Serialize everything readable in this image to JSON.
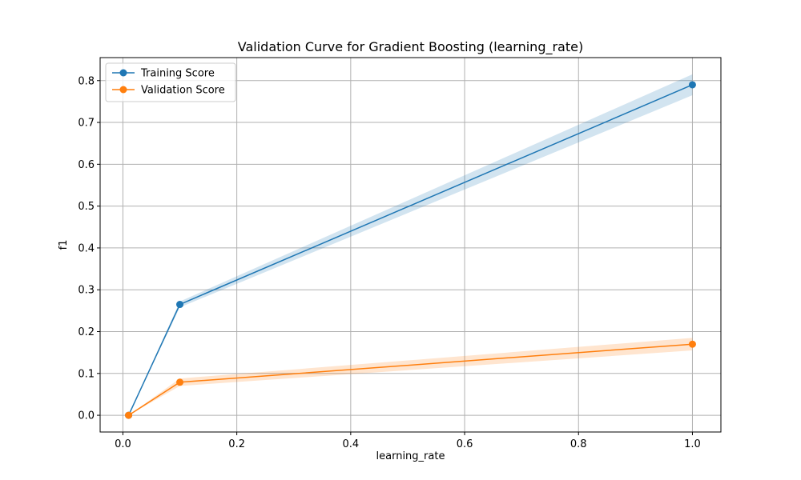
{
  "chart_data": {
    "type": "line",
    "title": "Validation Curve for Gradient Boosting (learning_rate)",
    "xlabel": "learning_rate",
    "ylabel": "f1",
    "xlim": [
      -0.04,
      1.05
    ],
    "ylim": [
      -0.04,
      0.855
    ],
    "xticks": [
      0.0,
      0.2,
      0.4,
      0.6,
      0.8,
      1.0
    ],
    "xtick_labels": [
      "0.0",
      "0.2",
      "0.4",
      "0.6",
      "0.8",
      "1.0"
    ],
    "yticks": [
      0.0,
      0.1,
      0.2,
      0.3,
      0.4,
      0.5,
      0.6,
      0.7,
      0.8
    ],
    "ytick_labels": [
      "0.0",
      "0.1",
      "0.2",
      "0.3",
      "0.4",
      "0.5",
      "0.6",
      "0.7",
      "0.8"
    ],
    "grid": true,
    "legend_position": "top-left",
    "x": [
      0.01,
      0.1,
      1.0
    ],
    "series": [
      {
        "name": "Training Score",
        "color": "#1f77b4",
        "band_color": "#1f77b4",
        "values": [
          0.0,
          0.265,
          0.79
        ],
        "lower": [
          0.0,
          0.258,
          0.765
        ],
        "upper": [
          0.0,
          0.272,
          0.815
        ]
      },
      {
        "name": "Validation Score",
        "color": "#ff7f0e",
        "band_color": "#ff7f0e",
        "values": [
          0.0,
          0.079,
          0.17
        ],
        "lower": [
          0.0,
          0.07,
          0.155
        ],
        "upper": [
          0.0,
          0.088,
          0.185
        ]
      }
    ]
  }
}
